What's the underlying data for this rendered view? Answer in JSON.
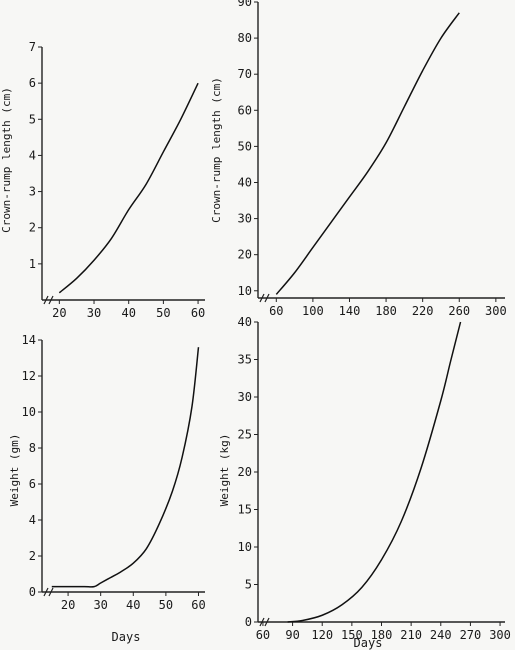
{
  "chart_data": [
    {
      "id": "a",
      "type": "line",
      "ylabel": "Crown-rump length (cm)",
      "xlabel": "",
      "xlim": [
        15,
        62
      ],
      "ylim": [
        0,
        7
      ],
      "xticks": [
        20,
        30,
        40,
        50,
        60
      ],
      "yticks": [
        1,
        2,
        3,
        4,
        5,
        6,
        7
      ],
      "series": [
        {
          "x": [
            20,
            25,
            30,
            35,
            40,
            45,
            50,
            55,
            60
          ],
          "y": [
            0.2,
            0.6,
            1.1,
            1.7,
            2.5,
            3.2,
            4.1,
            5.0,
            6.0
          ]
        }
      ]
    },
    {
      "id": "b",
      "type": "line",
      "ylabel": "Crown-rump length (cm)",
      "xlabel": "",
      "xlim": [
        40,
        310
      ],
      "ylim": [
        8,
        90
      ],
      "xticks": [
        60,
        100,
        140,
        180,
        220,
        260,
        300
      ],
      "yticks": [
        10,
        20,
        30,
        40,
        50,
        60,
        70,
        80,
        90
      ],
      "series": [
        {
          "x": [
            60,
            80,
            100,
            120,
            140,
            160,
            180,
            200,
            220,
            240,
            260
          ],
          "y": [
            9,
            15,
            22,
            29,
            36,
            43,
            51,
            61,
            71,
            80,
            87
          ]
        }
      ]
    },
    {
      "id": "c",
      "type": "line",
      "ylabel": "Weight (gm)",
      "xlabel": "Days",
      "xlim": [
        12,
        62
      ],
      "ylim": [
        0,
        14
      ],
      "xticks": [
        20,
        30,
        40,
        50,
        60
      ],
      "yticks": [
        0,
        2,
        4,
        6,
        8,
        10,
        12,
        14
      ],
      "series": [
        {
          "x": [
            15,
            20,
            25,
            28,
            30,
            33,
            36,
            40,
            44,
            48,
            52,
            55,
            58,
            60
          ],
          "y": [
            0.3,
            0.3,
            0.3,
            0.3,
            0.5,
            0.8,
            1.1,
            1.6,
            2.4,
            3.8,
            5.6,
            7.5,
            10.3,
            13.6
          ]
        }
      ]
    },
    {
      "id": "d",
      "type": "line",
      "ylabel": "Weight (kg)",
      "xlabel": "Days",
      "xlim": [
        55,
        305
      ],
      "ylim": [
        0,
        40
      ],
      "xticks": [
        60,
        90,
        120,
        150,
        180,
        210,
        240,
        270,
        300
      ],
      "yticks": [
        0,
        5,
        10,
        15,
        20,
        25,
        30,
        35,
        40
      ],
      "series": [
        {
          "x": [
            85,
            100,
            120,
            140,
            160,
            180,
            200,
            220,
            240,
            250,
            260
          ],
          "y": [
            0,
            0.2,
            0.9,
            2.3,
            4.6,
            8.3,
            13.4,
            20.5,
            29.5,
            34.8,
            40
          ]
        }
      ]
    }
  ]
}
